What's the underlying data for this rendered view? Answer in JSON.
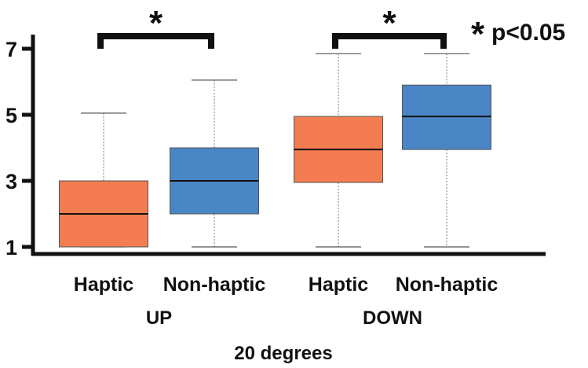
{
  "chart_data": {
    "type": "box",
    "xlabel": "20 degrees",
    "ylabel": "",
    "yticks": [
      1,
      3,
      5,
      7
    ],
    "ylim": [
      0.85,
      7.55
    ],
    "grid": false,
    "legend": "none",
    "groups": [
      {
        "label": "UP",
        "boxes": [
          {
            "label": "Haptic",
            "min": 1,
            "q1": 1,
            "median": 2,
            "q3": 3,
            "max": 5.05,
            "color": "#F37C51"
          },
          {
            "label": "Non-haptic",
            "min": 1,
            "q1": 2,
            "median": 3,
            "q3": 4,
            "max": 6.05,
            "color": "#4A86C6"
          }
        ],
        "significance": "*"
      },
      {
        "label": "DOWN",
        "boxes": [
          {
            "label": "Haptic",
            "min": 1,
            "q1": 2.95,
            "median": 3.95,
            "q3": 4.95,
            "max": 6.85,
            "color": "#F37C51"
          },
          {
            "label": "Non-haptic",
            "min": 1,
            "q1": 3.95,
            "median": 4.95,
            "q3": 5.9,
            "max": 6.85,
            "color": "#4A86C6"
          }
        ],
        "significance": "*"
      }
    ],
    "annotation": {
      "star": "*",
      "text": "p<0.05"
    }
  }
}
